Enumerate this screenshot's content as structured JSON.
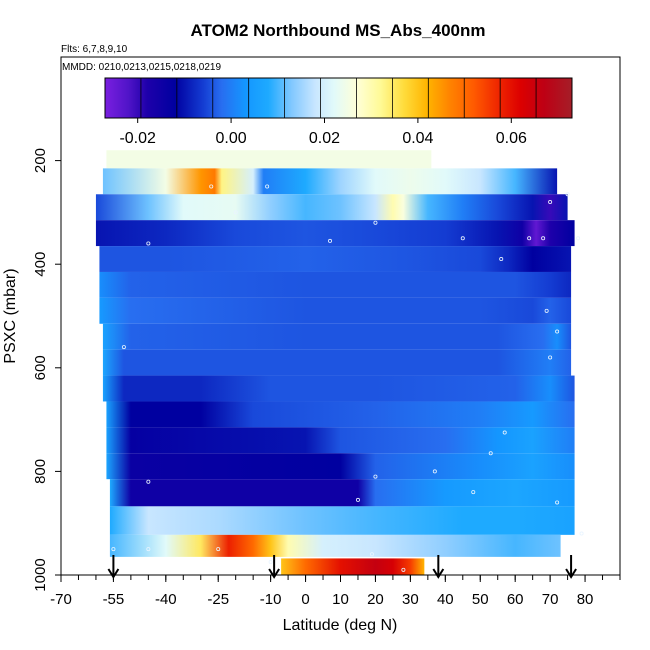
{
  "chart_data": {
    "type": "heatmap",
    "title": "ATOM2 Northbound MS_Abs_400nm",
    "subtitle_flights": "Flts: 6,7,8,9,10",
    "subtitle_dates": "MMDD: 0210,0213,0215,0218,0219",
    "xlabel": "Latitude (deg N)",
    "ylabel": "PSXC (mbar)",
    "xlim": [
      -70,
      90
    ],
    "ylim": [
      1000,
      0
    ],
    "x_ticks": [
      -70,
      -55,
      -40,
      -25,
      -10,
      0,
      10,
      20,
      30,
      40,
      50,
      60,
      70,
      80
    ],
    "y_ticks": [
      200,
      400,
      600,
      800,
      1000
    ],
    "colorbar": {
      "range": [
        -0.027,
        0.073
      ],
      "ticks": [
        -0.02,
        0.0,
        0.02,
        0.04,
        0.06
      ],
      "tick_labels": [
        "-0.02",
        "0.00",
        "0.02",
        "0.04",
        "0.06"
      ]
    },
    "arrow_latitudes": [
      -55,
      -9,
      38,
      76
    ],
    "layers": [
      {
        "p": 190,
        "lat_start": -57,
        "lat_end": 36,
        "segments": [
          [
            -57,
            0.025
          ],
          [
            36,
            0.025
          ]
        ]
      },
      {
        "p": 240,
        "lat_start": -58,
        "lat_end": 72,
        "segments": [
          [
            -58,
            0.012
          ],
          [
            -40,
            0.025
          ],
          [
            -30,
            0.045
          ],
          [
            -26,
            0.048
          ],
          [
            -24,
            0.033
          ],
          [
            -15,
            0.02
          ],
          [
            -12,
            0.0
          ],
          [
            0,
            0.008
          ],
          [
            10,
            0.015
          ],
          [
            20,
            0.022
          ],
          [
            30,
            0.024
          ],
          [
            40,
            0.022
          ],
          [
            50,
            0.018
          ],
          [
            60,
            0.01
          ],
          [
            72,
            -0.01
          ]
        ]
      },
      {
        "p": 290,
        "lat_start": -60,
        "lat_end": 75,
        "segments": [
          [
            -60,
            -0.005
          ],
          [
            -45,
            0.012
          ],
          [
            -35,
            0.022
          ],
          [
            -20,
            0.023
          ],
          [
            -10,
            0.014
          ],
          [
            0,
            0.01
          ],
          [
            10,
            0.012
          ],
          [
            20,
            0.018
          ],
          [
            25,
            0.03
          ],
          [
            28,
            0.026
          ],
          [
            35,
            0.01
          ],
          [
            45,
            0.0
          ],
          [
            55,
            -0.005
          ],
          [
            65,
            -0.01
          ],
          [
            70,
            -0.02
          ],
          [
            75,
            -0.01
          ]
        ]
      },
      {
        "p": 340,
        "lat_start": -60,
        "lat_end": 77,
        "segments": [
          [
            -60,
            -0.01
          ],
          [
            -40,
            -0.008
          ],
          [
            -20,
            -0.005
          ],
          [
            0,
            -0.004
          ],
          [
            20,
            -0.005
          ],
          [
            40,
            -0.006
          ],
          [
            55,
            -0.01
          ],
          [
            62,
            -0.015
          ],
          [
            66,
            -0.024
          ],
          [
            70,
            -0.018
          ],
          [
            77,
            -0.012
          ]
        ]
      },
      {
        "p": 390,
        "lat_start": -59,
        "lat_end": 76,
        "segments": [
          [
            -59,
            -0.004
          ],
          [
            -40,
            -0.004
          ],
          [
            0,
            -0.003
          ],
          [
            30,
            -0.004
          ],
          [
            50,
            -0.005
          ],
          [
            58,
            -0.008
          ],
          [
            65,
            -0.012
          ],
          [
            76,
            -0.01
          ]
        ]
      },
      {
        "p": 440,
        "lat_start": -59,
        "lat_end": 76,
        "segments": [
          [
            -59,
            0.002
          ],
          [
            -50,
            -0.003
          ],
          [
            0,
            -0.004
          ],
          [
            40,
            -0.004
          ],
          [
            60,
            -0.004
          ],
          [
            70,
            -0.006
          ],
          [
            76,
            -0.008
          ]
        ]
      },
      {
        "p": 490,
        "lat_start": -59,
        "lat_end": 76,
        "segments": [
          [
            -59,
            0.004
          ],
          [
            -50,
            -0.002
          ],
          [
            0,
            -0.004
          ],
          [
            50,
            -0.004
          ],
          [
            65,
            -0.005
          ],
          [
            70,
            -0.003
          ],
          [
            76,
            -0.005
          ]
        ]
      },
      {
        "p": 540,
        "lat_start": -58,
        "lat_end": 76,
        "segments": [
          [
            -58,
            0.006
          ],
          [
            -50,
            -0.003
          ],
          [
            0,
            -0.004
          ],
          [
            55,
            -0.004
          ],
          [
            68,
            -0.002
          ],
          [
            72,
            0.002
          ],
          [
            76,
            -0.004
          ]
        ]
      },
      {
        "p": 590,
        "lat_start": -58,
        "lat_end": 76,
        "segments": [
          [
            -58,
            0.007
          ],
          [
            -52,
            -0.004
          ],
          [
            0,
            -0.004
          ],
          [
            55,
            -0.004
          ],
          [
            70,
            0.0
          ],
          [
            76,
            -0.003
          ]
        ]
      },
      {
        "p": 640,
        "lat_start": -58,
        "lat_end": 77,
        "segments": [
          [
            -58,
            0.006
          ],
          [
            -52,
            -0.008
          ],
          [
            -30,
            -0.008
          ],
          [
            -10,
            -0.004
          ],
          [
            20,
            -0.004
          ],
          [
            60,
            -0.003
          ],
          [
            70,
            0.002
          ],
          [
            77,
            -0.004
          ]
        ]
      },
      {
        "p": 690,
        "lat_start": -57,
        "lat_end": 77,
        "segments": [
          [
            -57,
            0.006
          ],
          [
            -50,
            -0.012
          ],
          [
            -30,
            -0.012
          ],
          [
            -15,
            -0.005
          ],
          [
            20,
            -0.003
          ],
          [
            50,
            0.0
          ],
          [
            65,
            0.004
          ],
          [
            77,
            -0.002
          ]
        ]
      },
      {
        "p": 740,
        "lat_start": -57,
        "lat_end": 77,
        "segments": [
          [
            -57,
            0.006
          ],
          [
            -50,
            -0.013
          ],
          [
            0,
            -0.01
          ],
          [
            10,
            -0.004
          ],
          [
            40,
            -0.002
          ],
          [
            55,
            0.003
          ],
          [
            65,
            0.006
          ],
          [
            77,
            0.0
          ]
        ]
      },
      {
        "p": 790,
        "lat_start": -57,
        "lat_end": 77,
        "segments": [
          [
            -57,
            0.007
          ],
          [
            -50,
            -0.014
          ],
          [
            10,
            -0.012
          ],
          [
            20,
            -0.003
          ],
          [
            50,
            0.002
          ],
          [
            65,
            0.006
          ],
          [
            77,
            0.002
          ]
        ]
      },
      {
        "p": 840,
        "lat_start": -56,
        "lat_end": 77,
        "segments": [
          [
            -56,
            0.008
          ],
          [
            -50,
            -0.015
          ],
          [
            15,
            -0.015
          ],
          [
            20,
            -0.002
          ],
          [
            40,
            0.004
          ],
          [
            60,
            0.007
          ],
          [
            77,
            0.004
          ]
        ]
      },
      {
        "p": 895,
        "lat_start": -56,
        "lat_end": 77,
        "segments": [
          [
            -56,
            0.008
          ],
          [
            -45,
            0.018
          ],
          [
            -25,
            0.016
          ],
          [
            0,
            0.012
          ],
          [
            20,
            0.01
          ],
          [
            45,
            0.008
          ],
          [
            60,
            0.008
          ],
          [
            77,
            0.006
          ]
        ]
      },
      {
        "p": 950,
        "lat_start": -56,
        "lat_end": 73,
        "segments": [
          [
            -56,
            0.01
          ],
          [
            -40,
            0.022
          ],
          [
            -30,
            0.035
          ],
          [
            -22,
            0.058
          ],
          [
            -15,
            0.05
          ],
          [
            -10,
            0.04
          ],
          [
            -5,
            0.03
          ],
          [
            5,
            0.02
          ],
          [
            20,
            0.018
          ],
          [
            40,
            0.014
          ],
          [
            60,
            0.01
          ],
          [
            73,
            0.012
          ]
        ]
      },
      {
        "p": 980,
        "lat_start": -7,
        "lat_end": 34,
        "segments": [
          [
            -7,
            0.04
          ],
          [
            0,
            0.05
          ],
          [
            10,
            0.06
          ],
          [
            20,
            0.066
          ],
          [
            25,
            0.063
          ],
          [
            30,
            0.055
          ],
          [
            34,
            0.042
          ]
        ]
      }
    ],
    "sample_points": [
      [
        -55,
        950
      ],
      [
        -45,
        950
      ],
      [
        -25,
        950
      ],
      [
        19,
        960
      ],
      [
        28,
        990
      ],
      [
        -10,
        975
      ],
      [
        -45,
        820
      ],
      [
        15,
        855
      ],
      [
        20,
        810
      ],
      [
        37,
        800
      ],
      [
        48,
        840
      ],
      [
        53,
        765
      ],
      [
        57,
        725
      ],
      [
        72,
        860
      ],
      [
        79,
        920
      ],
      [
        -52,
        560
      ],
      [
        70,
        580
      ],
      [
        72,
        530
      ],
      [
        69,
        490
      ],
      [
        56,
        390
      ],
      [
        -45,
        360
      ],
      [
        7,
        355
      ],
      [
        20,
        320
      ],
      [
        45,
        350
      ],
      [
        64,
        350
      ],
      [
        68,
        350
      ],
      [
        78,
        350
      ],
      [
        70,
        280
      ],
      [
        75,
        265
      ],
      [
        -20,
        300
      ],
      [
        -27,
        250
      ],
      [
        -11,
        250
      ]
    ]
  }
}
